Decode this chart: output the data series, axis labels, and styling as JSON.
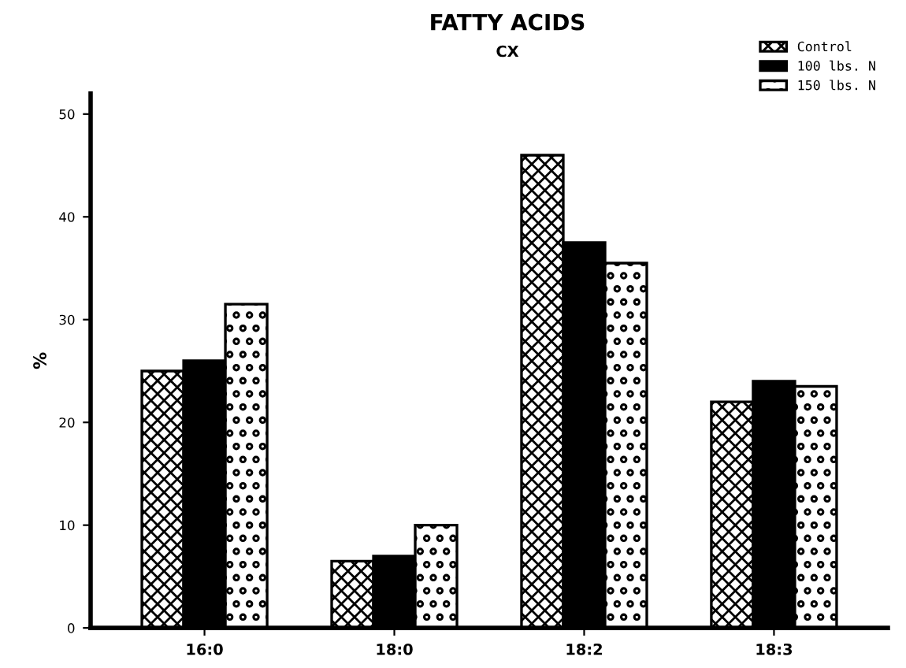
{
  "chart_data": {
    "type": "bar",
    "title": "FATTY ACIDS",
    "subtitle": "CX",
    "ylabel": "%",
    "categories": [
      "16:0",
      "18:0",
      "18:2",
      "18:3"
    ],
    "series": [
      {
        "name": "Control",
        "color": "#000000",
        "values": [
          25,
          6.5,
          46,
          22
        ]
      },
      {
        "name": "100 lbs. N",
        "color": "#000000",
        "values": [
          26,
          7,
          37.5,
          24
        ]
      },
      {
        "name": "150 lbs. N",
        "color": "#000000",
        "values": [
          31.5,
          10,
          35.5,
          23.5
        ]
      }
    ],
    "ylim": [
      0,
      52
    ],
    "yticks": [
      0,
      10,
      20,
      30,
      40,
      50
    ],
    "grid": false,
    "legend": "top right"
  }
}
